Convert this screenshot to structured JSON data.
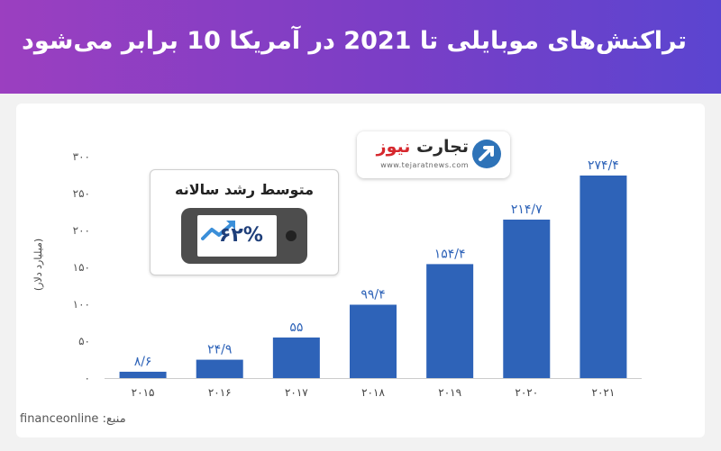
{
  "header": {
    "title": "تراکنش‌های موبایلی تا 2021 در  آمریکا 10 برابر می‌شود"
  },
  "logo": {
    "name_main": "تجارت",
    "name_accent": "نیوز",
    "url": "www.tejaratnews.com"
  },
  "callout": {
    "title": "متوسط رشد سالانه",
    "value": "۶۲%"
  },
  "source": "منبع: financeonline",
  "colors": {
    "bar": "#2e63b8",
    "header_start": "#9b3fc0",
    "header_end": "#5b45d0",
    "value_label": "#2e63b8"
  },
  "chart_data": {
    "type": "bar",
    "title": "",
    "xlabel": "",
    "ylabel": "(میلیارد دلار)",
    "categories": [
      "۲۰۱۵",
      "۲۰۱۶",
      "۲۰۱۷",
      "۲۰۱۸",
      "۲۰۱۹",
      "۲۰۲۰",
      "۲۰۲۱"
    ],
    "values": [
      8.6,
      24.9,
      55,
      99.4,
      154.4,
      214.7,
      274.4
    ],
    "value_labels": [
      "۸/۶",
      "۲۴/۹",
      "۵۵",
      "۹۹/۴",
      "۱۵۴/۴",
      "۲۱۴/۷",
      "۲۷۴/۴"
    ],
    "yticks": [
      0,
      50,
      100,
      150,
      200,
      250,
      300
    ],
    "ytick_labels": [
      "۰",
      "۵۰",
      "۱۰۰",
      "۱۵۰",
      "۲۰۰",
      "۲۵۰",
      "۳۰۰"
    ],
    "ylim": [
      0,
      300
    ],
    "grid": false,
    "legend": "none"
  }
}
